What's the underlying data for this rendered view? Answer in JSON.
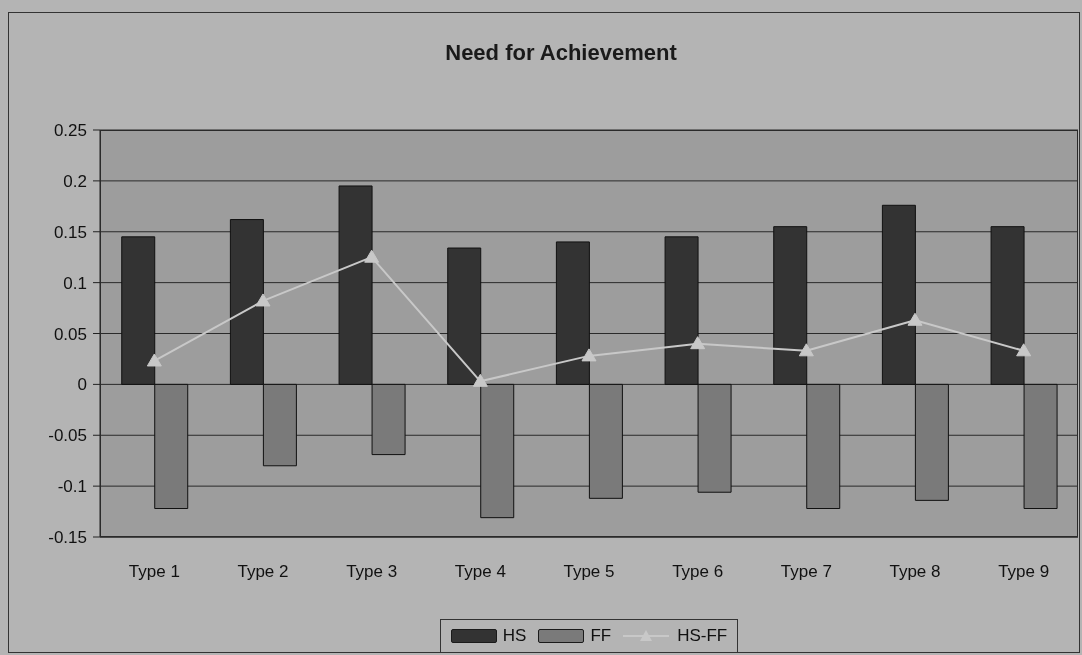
{
  "chart_data": {
    "type": "bar",
    "title": "Need for Achievement",
    "categories": [
      "Type 1",
      "Type 2",
      "Type 3",
      "Type 4",
      "Type 5",
      "Type 6",
      "Type 7",
      "Type 8",
      "Type 9"
    ],
    "series": [
      {
        "name": "HS",
        "color": "#333333",
        "values": [
          0.145,
          0.162,
          0.195,
          0.134,
          0.14,
          0.145,
          0.155,
          0.176,
          0.155
        ]
      },
      {
        "name": "FF",
        "color": "#7a7a7a",
        "values": [
          -0.122,
          -0.08,
          -0.069,
          -0.131,
          -0.112,
          -0.106,
          -0.122,
          -0.114,
          -0.122
        ]
      },
      {
        "name": "HS-FF",
        "type": "line",
        "color": "#c8c8c8",
        "marker": "triangle",
        "values": [
          0.023,
          0.082,
          0.125,
          0.003,
          0.028,
          0.04,
          0.033,
          0.063,
          0.033
        ]
      }
    ],
    "ylim": [
      -0.15,
      0.25
    ],
    "yticks": [
      -0.15,
      -0.1,
      -0.05,
      0,
      0.05,
      0.1,
      0.15,
      0.2,
      0.25
    ],
    "grid": "y",
    "legend": "bottom"
  }
}
